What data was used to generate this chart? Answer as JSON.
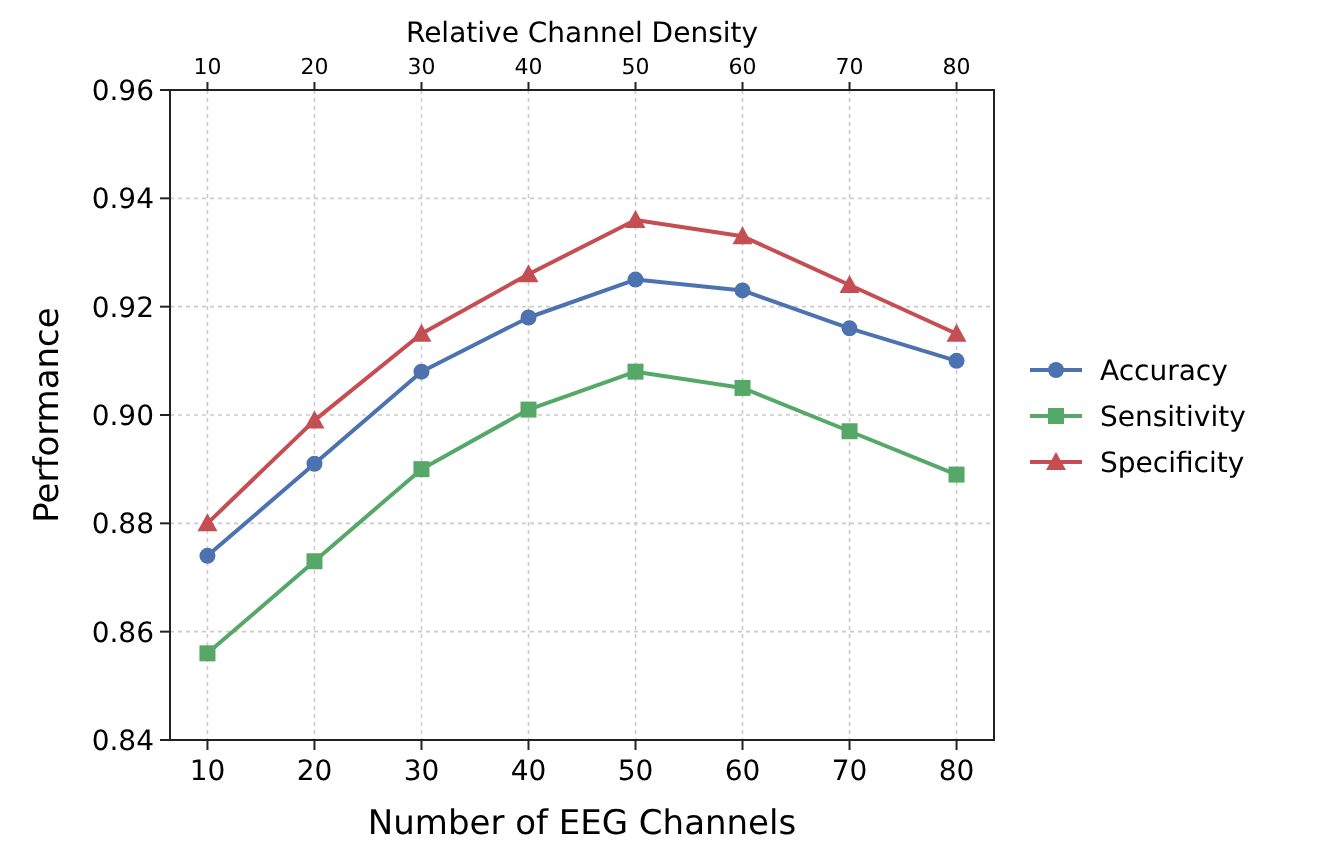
{
  "chart_data": {
    "type": "line",
    "xlabel": "Number of EEG Channels",
    "ylabel": "Performance",
    "x2label": "Relative Channel Density",
    "x": [
      10,
      20,
      30,
      40,
      50,
      60,
      70,
      80
    ],
    "xlim": [
      6.5,
      83.5
    ],
    "xticks": [
      10,
      20,
      30,
      40,
      50,
      60,
      70,
      80
    ],
    "x2lim": [
      6.5,
      83.5
    ],
    "x2ticks": [
      10,
      20,
      30,
      40,
      50,
      60,
      70,
      80
    ],
    "ylim": [
      0.84,
      0.96
    ],
    "yticks": [
      {
        "value": 0.84,
        "label": "0.84"
      },
      {
        "value": 0.86,
        "label": "0.86"
      },
      {
        "value": 0.88,
        "label": "0.88"
      },
      {
        "value": 0.9,
        "label": "0.90"
      },
      {
        "value": 0.92,
        "label": "0.92"
      },
      {
        "value": 0.94,
        "label": "0.94"
      },
      {
        "value": 0.96,
        "label": "0.96"
      }
    ],
    "grid": true,
    "legend": "right",
    "line_style": "solid",
    "series": [
      {
        "name": "Accuracy",
        "color": "#4c72b0",
        "marker": "circle",
        "values": [
          0.874,
          0.891,
          0.908,
          0.918,
          0.925,
          0.923,
          0.916,
          0.91
        ]
      },
      {
        "name": "Sensitivity",
        "color": "#55a868",
        "marker": "square",
        "values": [
          0.856,
          0.873,
          0.89,
          0.901,
          0.908,
          0.905,
          0.897,
          0.889
        ]
      },
      {
        "name": "Specificity",
        "color": "#c44e52",
        "marker": "triangle",
        "values": [
          0.88,
          0.899,
          0.915,
          0.926,
          0.936,
          0.933,
          0.924,
          0.915
        ]
      }
    ]
  }
}
